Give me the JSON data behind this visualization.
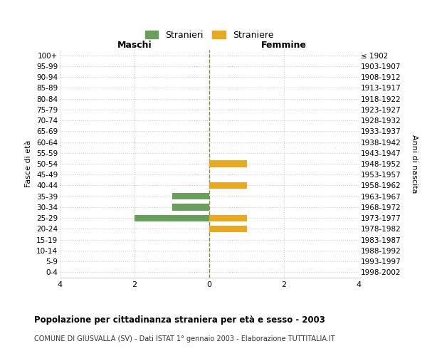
{
  "age_groups": [
    "100+",
    "95-99",
    "90-94",
    "85-89",
    "80-84",
    "75-79",
    "70-74",
    "65-69",
    "60-64",
    "55-59",
    "50-54",
    "45-49",
    "40-44",
    "35-39",
    "30-34",
    "25-29",
    "20-24",
    "15-19",
    "10-14",
    "5-9",
    "0-4"
  ],
  "birth_years": [
    "≤ 1902",
    "1903-1907",
    "1908-1912",
    "1913-1917",
    "1918-1922",
    "1923-1927",
    "1928-1932",
    "1933-1937",
    "1938-1942",
    "1943-1947",
    "1948-1952",
    "1953-1957",
    "1958-1962",
    "1963-1967",
    "1968-1972",
    "1973-1977",
    "1978-1982",
    "1983-1987",
    "1988-1992",
    "1993-1997",
    "1998-2002"
  ],
  "maschi": [
    0,
    0,
    0,
    0,
    0,
    0,
    0,
    0,
    0,
    0,
    0,
    0,
    0,
    -1,
    -1,
    -2,
    0,
    0,
    0,
    0,
    0
  ],
  "femmine": [
    0,
    0,
    0,
    0,
    0,
    0,
    0,
    0,
    0,
    0,
    1,
    0,
    1,
    0,
    0,
    1,
    1,
    0,
    0,
    0,
    0
  ],
  "color_maschi": "#6a9e5c",
  "color_femmine": "#e8a922",
  "title_bold": "Popolazione per cittadinanza straniera per età e sesso - 2003",
  "subtitle": "COMUNE DI GIUSVALLA (SV) - Dati ISTAT 1° gennaio 2003 - Elaborazione TUTTITALIA.IT",
  "ylabel_left": "Fasce di età",
  "ylabel_right": "Anni di nascita",
  "xlabel_maschi": "Maschi",
  "xlabel_femmine": "Femmine",
  "legend_maschi": "Stranieri",
  "legend_femmine": "Straniere",
  "xlim": [
    -4,
    4
  ],
  "xticks": [
    -4,
    -2,
    0,
    2,
    4
  ],
  "xtick_labels": [
    "4",
    "2",
    "0",
    "2",
    "4"
  ],
  "background_color": "#ffffff",
  "grid_color": "#cccccc",
  "center_line_color": "#888844"
}
